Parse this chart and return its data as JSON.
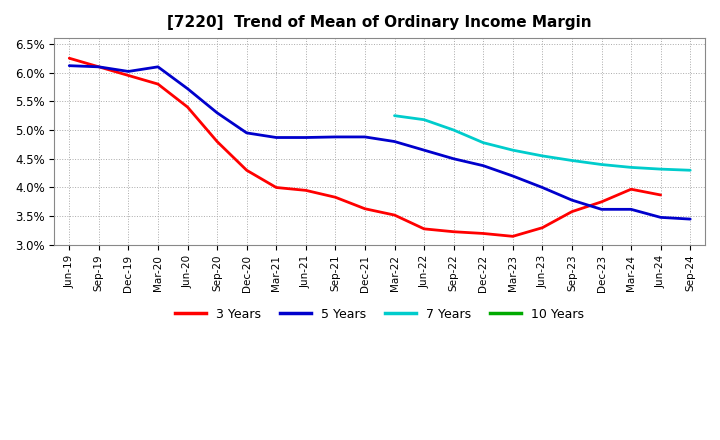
{
  "title": "[7220]  Trend of Mean of Ordinary Income Margin",
  "ylim": [
    0.03,
    0.066
  ],
  "yticks": [
    0.03,
    0.035,
    0.04,
    0.045,
    0.05,
    0.055,
    0.06,
    0.065
  ],
  "background_color": "#ffffff",
  "plot_bg_color": "#ffffff",
  "grid_color": "#aaaaaa",
  "x_tick_labels": [
    "Jun-19",
    "Sep-19",
    "Dec-19",
    "Mar-20",
    "Jun-20",
    "Sep-20",
    "Dec-20",
    "Mar-21",
    "Jun-21",
    "Sep-21",
    "Dec-21",
    "Mar-22",
    "Jun-22",
    "Sep-22",
    "Dec-22",
    "Mar-23",
    "Jun-23",
    "Sep-23",
    "Dec-23",
    "Mar-24",
    "Jun-24",
    "Sep-24"
  ],
  "series": {
    "3 Years": {
      "color": "#ff0000",
      "x_indices": [
        0,
        1,
        2,
        3,
        4,
        5,
        6,
        7,
        8,
        9,
        10,
        11,
        12,
        13,
        14,
        15,
        16,
        17,
        18,
        19,
        20
      ],
      "values": [
        0.0625,
        0.061,
        0.0595,
        0.058,
        0.054,
        0.048,
        0.043,
        0.04,
        0.0395,
        0.0383,
        0.0363,
        0.0352,
        0.0328,
        0.0323,
        0.032,
        0.0315,
        0.033,
        0.0358,
        0.0375,
        0.0397,
        0.0387
      ]
    },
    "5 Years": {
      "color": "#0000cc",
      "x_indices": [
        0,
        1,
        2,
        3,
        4,
        5,
        6,
        7,
        8,
        9,
        10,
        11,
        12,
        13,
        14,
        15,
        16,
        17,
        18,
        19,
        20,
        21
      ],
      "values": [
        0.0612,
        0.061,
        0.0602,
        0.061,
        0.0572,
        0.053,
        0.0495,
        0.0487,
        0.0487,
        0.0488,
        0.0488,
        0.048,
        0.0465,
        0.045,
        0.0438,
        0.042,
        0.04,
        0.0378,
        0.0362,
        0.0362,
        0.0348,
        0.0345
      ]
    },
    "7 Years": {
      "color": "#00cccc",
      "x_indices": [
        11,
        12,
        13,
        14,
        15,
        16,
        17,
        18,
        19,
        20,
        21
      ],
      "values": [
        0.0525,
        0.0518,
        0.05,
        0.0478,
        0.0465,
        0.0455,
        0.0447,
        0.044,
        0.0435,
        0.0432,
        0.043
      ]
    },
    "10 Years": {
      "color": "#00aa00",
      "x_indices": [],
      "values": []
    }
  },
  "legend_labels": [
    "3 Years",
    "5 Years",
    "7 Years",
    "10 Years"
  ],
  "legend_colors": [
    "#ff0000",
    "#0000cc",
    "#00cccc",
    "#00aa00"
  ]
}
